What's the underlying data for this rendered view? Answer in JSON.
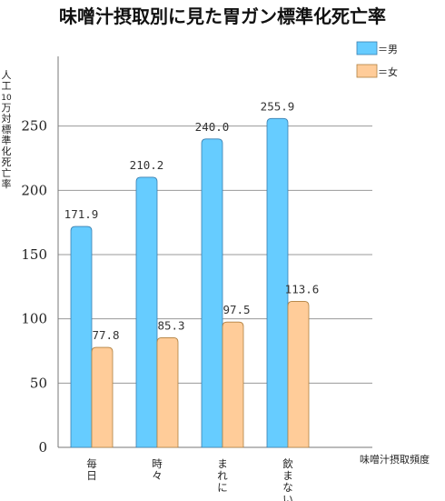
{
  "chart_data": {
    "type": "bar",
    "title": "味噌汁摂取別に見た胃ガン標準化死亡率",
    "ylabel": "人工10万対標準化死亡率",
    "xlabel": "味噌汁摂取頻度",
    "categories": [
      "毎日",
      "時々",
      "まれに",
      "飲まない"
    ],
    "series": [
      {
        "name": "＝男",
        "color": "#66ccff",
        "values": [
          171.9,
          210.2,
          240.0,
          255.9
        ],
        "labels": [
          "171.9",
          "210.2",
          "240.0",
          "255.9"
        ]
      },
      {
        "name": "＝女",
        "color": "#ffcc99",
        "values": [
          77.8,
          85.3,
          97.5,
          113.6
        ],
        "labels": [
          "77.8",
          "85.3",
          "97.5",
          "113.6"
        ]
      }
    ],
    "ylim": [
      0,
      300
    ],
    "yticks": [
      0,
      50,
      100,
      150,
      200,
      250
    ],
    "grid": true,
    "legend": "top-right"
  }
}
